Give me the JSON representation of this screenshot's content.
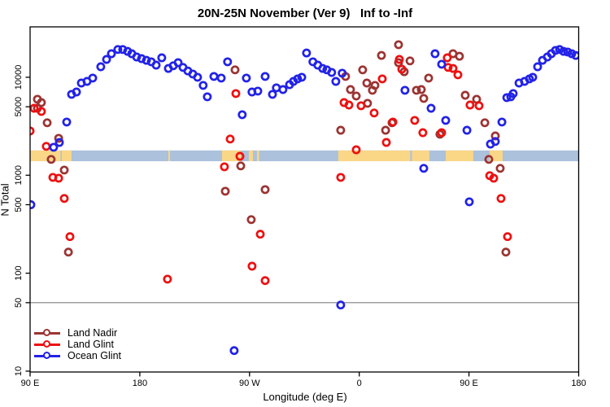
{
  "title": "20N-25N November (Ver 9)   Inf to -Inf",
  "x_axis": {
    "label": "Longitude (deg E)",
    "ticks": [
      {
        "value": 90,
        "label": "90 E"
      },
      {
        "value": 180,
        "label": "180"
      },
      {
        "value": 270,
        "label": "90 W"
      },
      {
        "value": 360,
        "label": "0"
      },
      {
        "value": 450,
        "label": "90 E"
      },
      {
        "value": 540,
        "label": "180"
      }
    ]
  },
  "y_axis": {
    "label": "N Total",
    "ticks": [
      {
        "value": 10000,
        "label": "10000"
      },
      {
        "value": 5000,
        "label": "5000"
      },
      {
        "value": 1000,
        "label": "1000"
      },
      {
        "value": 500,
        "label": "500"
      },
      {
        "value": 100,
        "label": "100"
      },
      {
        "value": 50,
        "label": "50"
      },
      {
        "value": 10,
        "label": "10"
      }
    ]
  },
  "legend": {
    "items": [
      {
        "label": "Land Nadir",
        "color": "#9B3432"
      },
      {
        "label": "Land Glint",
        "color": "#EE1010"
      },
      {
        "label": "Ocean Glint",
        "color": "#2222E8"
      }
    ]
  },
  "colors": {
    "land_nadir": "#9B3432",
    "land_glint": "#EE1010",
    "ocean_glint": "#2222E8",
    "map_ocean": "#ABC1DC",
    "map_land": "#FAD687",
    "reference_line": "#808080",
    "frame": "#000000"
  },
  "map_band": {
    "n_range": [
      1390,
      1790
    ],
    "land_segments_lon": [
      [
        90,
        115
      ],
      [
        116,
        124
      ],
      [
        203.4,
        204.8
      ],
      [
        247.4,
        262.8
      ],
      [
        269.4,
        272.8
      ],
      [
        276.1,
        277.8
      ],
      [
        342.8,
        401.8
      ],
      [
        403.2,
        417.5
      ],
      [
        430.9,
        453.6
      ],
      [
        466.9,
        477.6
      ]
    ]
  },
  "reference_line": {
    "value": 50
  },
  "chart_data": {
    "type": "scatter",
    "title": "20N-25N November (Ver 9)   Inf to -Inf",
    "xlabel": "Longitude (deg E)",
    "ylabel": "N Total",
    "x_unit": "degrees longitude, wrapped from 90E eastward to 180 (90..540)",
    "xlim": [
      90,
      540
    ],
    "ylim": [
      9.8,
      32700
    ],
    "y_scale": "log",
    "grid": false,
    "legend_position": "lower-left",
    "series": [
      {
        "name": "Land Nadir",
        "color": "#9B3432",
        "points": [
          [
            96,
            5970
          ],
          [
            99.3,
            5520
          ],
          [
            96,
            4830
          ],
          [
            104,
            3430
          ],
          [
            113.4,
            2380
          ],
          [
            107.3,
            1450
          ],
          [
            118,
            1130
          ],
          [
            121.4,
            164
          ],
          [
            258.1,
            11900
          ],
          [
            262.8,
            1245
          ],
          [
            250.1,
            687
          ],
          [
            282.8,
            714
          ],
          [
            271.4,
            352
          ],
          [
            344.8,
            2880
          ],
          [
            348.8,
            10200
          ],
          [
            352.8,
            7500
          ],
          [
            357.5,
            6440
          ],
          [
            362.8,
            11900
          ],
          [
            366.2,
            8740
          ],
          [
            370.8,
            7360
          ],
          [
            372.9,
            8260
          ],
          [
            366.8,
            5420
          ],
          [
            378.2,
            16700
          ],
          [
            381.6,
            2880
          ],
          [
            386.9,
            3430
          ],
          [
            392.2,
            21500
          ],
          [
            392.2,
            14100
          ],
          [
            396.9,
            11400
          ],
          [
            401.6,
            14700
          ],
          [
            416.9,
            9810
          ],
          [
            406.9,
            7360
          ],
          [
            410.9,
            7500
          ],
          [
            412.9,
            6080
          ],
          [
            426.2,
            2620
          ],
          [
            436.9,
            17400
          ],
          [
            442.2,
            16400
          ],
          [
            446.9,
            6560
          ],
          [
            456.3,
            5970
          ],
          [
            463,
            3430
          ],
          [
            466.3,
            1450
          ],
          [
            471.6,
            2520
          ],
          [
            475.6,
            1175
          ],
          [
            480.3,
            164
          ]
        ]
      },
      {
        "name": "Land Glint",
        "color": "#EE1010",
        "points": [
          [
            93.3,
            4830
          ],
          [
            99.3,
            4480
          ],
          [
            90,
            2830
          ],
          [
            103.3,
            1970
          ],
          [
            108.7,
            950
          ],
          [
            113.4,
            933
          ],
          [
            118,
            579
          ],
          [
            122.7,
            236
          ],
          [
            202.7,
            87
          ],
          [
            258.8,
            6820
          ],
          [
            254.1,
            2340
          ],
          [
            262.1,
            1560
          ],
          [
            249.4,
            1220
          ],
          [
            278.8,
            250
          ],
          [
            272.1,
            118
          ],
          [
            282.8,
            84
          ],
          [
            347.5,
            5520
          ],
          [
            351.5,
            5210
          ],
          [
            361.5,
            5120
          ],
          [
            372.2,
            4320
          ],
          [
            378.9,
            9620
          ],
          [
            382.2,
            2160
          ],
          [
            357.5,
            1820
          ],
          [
            344.8,
            950
          ],
          [
            387.6,
            3490
          ],
          [
            392.9,
            15200
          ],
          [
            394.9,
            12100
          ],
          [
            405.5,
            3630
          ],
          [
            412.2,
            2720
          ],
          [
            427.6,
            2720
          ],
          [
            432.2,
            15800
          ],
          [
            432.9,
            12600
          ],
          [
            436.9,
            12300
          ],
          [
            440.9,
            10600
          ],
          [
            450.9,
            5210
          ],
          [
            458.3,
            5120
          ],
          [
            467,
            989
          ],
          [
            470.3,
            933
          ],
          [
            476.3,
            579
          ],
          [
            481.6,
            236
          ]
        ]
      },
      {
        "name": "Ocean Glint",
        "color": "#2222E8",
        "points": [
          [
            90.7,
            500
          ],
          [
            109.3,
            1930
          ],
          [
            114,
            2160
          ],
          [
            120,
            3490
          ],
          [
            124,
            6690
          ],
          [
            128,
            7080
          ],
          [
            132,
            8740
          ],
          [
            136.7,
            9080
          ],
          [
            141.4,
            9810
          ],
          [
            148,
            12800
          ],
          [
            152.7,
            15200
          ],
          [
            156.7,
            17400
          ],
          [
            162,
            19200
          ],
          [
            166,
            19200
          ],
          [
            170,
            18400
          ],
          [
            173.4,
            17400
          ],
          [
            177.4,
            16100
          ],
          [
            181.4,
            15500
          ],
          [
            185.4,
            14900
          ],
          [
            189.4,
            14400
          ],
          [
            193.4,
            13300
          ],
          [
            198,
            15800
          ],
          [
            203.4,
            12300
          ],
          [
            207.4,
            13100
          ],
          [
            211.4,
            14100
          ],
          [
            215.4,
            12600
          ],
          [
            219.4,
            11600
          ],
          [
            223.4,
            10800
          ],
          [
            227.4,
            10000
          ],
          [
            232,
            8260
          ],
          [
            235.4,
            6320
          ],
          [
            240.8,
            10200
          ],
          [
            246.8,
            9810
          ],
          [
            252,
            14400
          ],
          [
            257.4,
            16.2
          ],
          [
            264,
            4150
          ],
          [
            267.4,
            9810
          ],
          [
            272,
            7080
          ],
          [
            276.8,
            7230
          ],
          [
            282.8,
            10200
          ],
          [
            288.8,
            6690
          ],
          [
            292,
            7800
          ],
          [
            297.4,
            7500
          ],
          [
            302.8,
            8410
          ],
          [
            306,
            9080
          ],
          [
            309.4,
            9620
          ],
          [
            312.8,
            10000
          ],
          [
            316.8,
            17700
          ],
          [
            322,
            14400
          ],
          [
            326,
            13300
          ],
          [
            330,
            12300
          ],
          [
            333.4,
            11900
          ],
          [
            337.4,
            11200
          ],
          [
            340.8,
            9080
          ],
          [
            344.8,
            47.3
          ],
          [
            346,
            11000
          ],
          [
            397.5,
            7360
          ],
          [
            412.9,
            1175
          ],
          [
            418.9,
            4830
          ],
          [
            422.2,
            17400
          ],
          [
            427.6,
            13600
          ],
          [
            430.9,
            3630
          ],
          [
            448.3,
            2880
          ],
          [
            450.3,
            536
          ],
          [
            467.6,
            2080
          ],
          [
            471.6,
            2210
          ],
          [
            477,
            3490
          ],
          [
            481,
            6200
          ],
          [
            484.3,
            6320
          ],
          [
            486.3,
            6820
          ],
          [
            491,
            8740
          ],
          [
            495.6,
            9080
          ],
          [
            499.6,
            9620
          ],
          [
            502.3,
            10000
          ],
          [
            506.3,
            12800
          ],
          [
            510.3,
            14900
          ],
          [
            514.3,
            16100
          ],
          [
            517.6,
            17400
          ],
          [
            521,
            18800
          ],
          [
            524.3,
            19200
          ],
          [
            527.6,
            18400
          ],
          [
            531,
            18100
          ],
          [
            534.3,
            17400
          ],
          [
            537.6,
            16700
          ]
        ]
      }
    ]
  }
}
